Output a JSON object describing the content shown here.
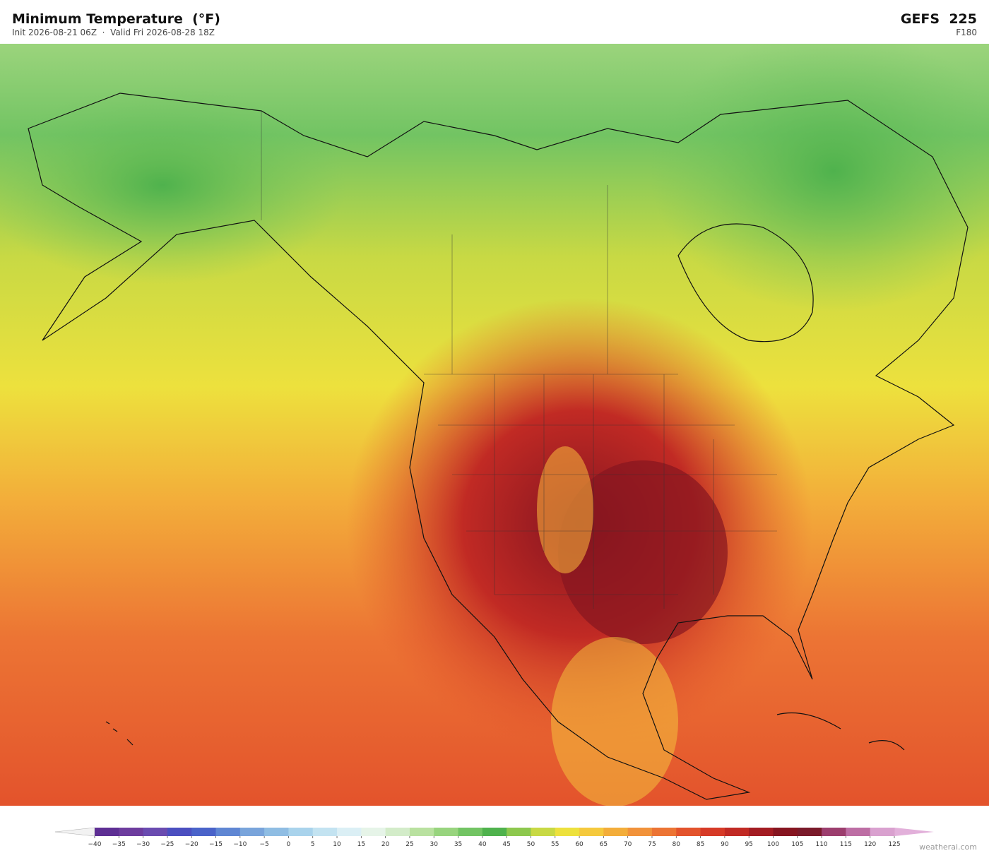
{
  "header": {
    "title": "Minimum Temperature  (°F)",
    "subtitle": "Init 2026-08-21 06Z  ·  Valid Fri 2026-08-28 18Z",
    "model": "GEFS  225",
    "forecast_hour": "F180"
  },
  "colorbar": {
    "ticks": [
      {
        "value": -40,
        "label": "−40"
      },
      {
        "value": -35,
        "label": "−35"
      },
      {
        "value": -30,
        "label": "−30"
      },
      {
        "value": -25,
        "label": "−25"
      },
      {
        "value": -20,
        "label": "−20"
      },
      {
        "value": -15,
        "label": "−15"
      },
      {
        "value": -10,
        "label": "−10"
      },
      {
        "value": -5,
        "label": "−5"
      },
      0,
      5,
      10,
      15,
      20,
      25,
      30,
      35,
      40,
      45,
      50,
      55,
      60,
      65,
      70,
      75,
      80,
      85,
      90,
      95,
      100,
      105,
      110,
      115,
      120,
      125
    ],
    "colors": [
      "#5e2f94",
      "#6d3c9e",
      "#6a4bb0",
      "#4b4fc0",
      "#4a63c9",
      "#5f86d3",
      "#79a4db",
      "#8fbde3",
      "#a9d3ec",
      "#c3e3f1",
      "#dbeff5",
      "#e6f4e8",
      "#d3ecc9",
      "#b9e1a0",
      "#98d47e",
      "#72c463",
      "#4fb24d",
      "#8dc84e",
      "#c8d944",
      "#ede13d",
      "#f5c93d",
      "#f3ad3a",
      "#f1923a",
      "#ec7434",
      "#e3532c",
      "#d63a27",
      "#c12a24",
      "#a31c22",
      "#861520",
      "#7a1a2a",
      "#9c3e6e",
      "#bd6ea4",
      "#d9a1cf"
    ],
    "extend_colors": [
      "#f2f2f2",
      "#e2b0da"
    ]
  },
  "footer": {
    "credit": "weatherai.com"
  }
}
